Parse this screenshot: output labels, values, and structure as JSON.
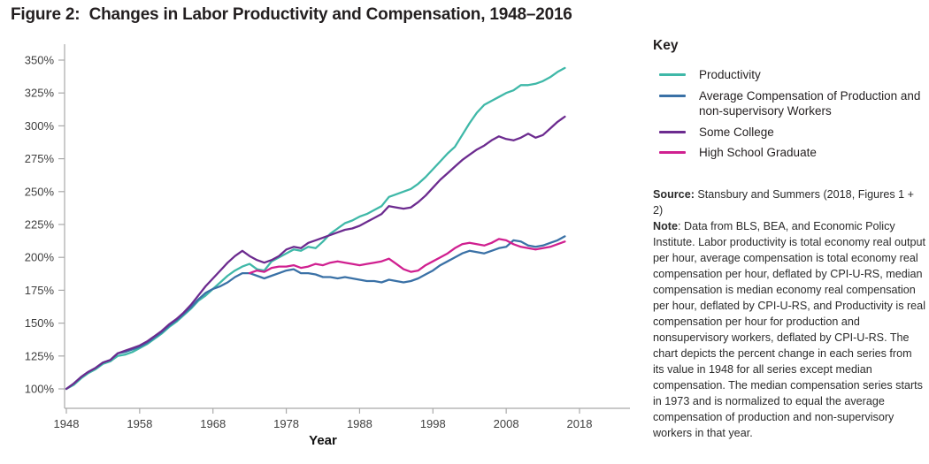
{
  "title": "Figure 2:  Changes in Labor Productivity and Compensation, 1948–2016",
  "legend": {
    "heading": "Key",
    "items": [
      {
        "label": "Productivity",
        "color": "#3fb8a8"
      },
      {
        "label": "Average Compensation of Production and non-supervisory Workers",
        "color": "#3a71a6"
      },
      {
        "label": "Some College",
        "color": "#6c2b8f"
      },
      {
        "label": "High School Graduate",
        "color": "#d02090"
      }
    ]
  },
  "notes": {
    "source_label": "Source:",
    "source_text": " Stansbury and Summers (2018, Figures 1 + 2)",
    "note_label": "Note",
    "note_text": ": Data from BLS, BEA, and Economic Policy Institute. Labor productivity is total economy real output per hour, average compensation is total economy real compensation per hour, deflated by CPI-U-RS, median compensation is median economy real compensation per hour, deflated by CPI-U-RS, and Productivity is real compensation per hour for production and nonsupervisory workers, deflated by CPI-U-RS. The chart depicts the percent change in each series from its value in 1948 for all series except median compensation. The median compensation series starts in 1973 and is normalized to equal the average compensation of production and non-supervisory workers in that year."
  },
  "chart_data": {
    "type": "line",
    "title": "Changes in Labor Productivity and Compensation, 1948–2016",
    "xlabel": "Year",
    "ylabel": "",
    "grid": false,
    "legend_position": "right",
    "xlim": [
      1948,
      2018
    ],
    "ylim": [
      100,
      350
    ],
    "x_ticks": [
      1948,
      1958,
      1968,
      1978,
      1988,
      1998,
      2008,
      2018
    ],
    "y_ticks": [
      {
        "v": 100,
        "label": "100%"
      },
      {
        "v": 125,
        "label": "125%"
      },
      {
        "v": 150,
        "label": "150%"
      },
      {
        "v": 175,
        "label": "175%"
      },
      {
        "v": 200,
        "label": "200%"
      },
      {
        "v": 225,
        "label": "225%"
      },
      {
        "v": 250,
        "label": "250%"
      },
      {
        "v": 275,
        "label": "275%"
      },
      {
        "v": 300,
        "label": "300%"
      },
      {
        "v": 325,
        "label": "325%"
      },
      {
        "v": 350,
        "label": "350%"
      }
    ],
    "series": [
      {
        "name": "Productivity",
        "color": "#3fb8a8",
        "x_start": 1948,
        "values": [
          100,
          103,
          108,
          112,
          115,
          119,
          121,
          125,
          126,
          128,
          131,
          134,
          138,
          142,
          147,
          151,
          156,
          161,
          167,
          171,
          176,
          181,
          186,
          190,
          193,
          195,
          191,
          190,
          197,
          200,
          203,
          206,
          205,
          208,
          207,
          212,
          218,
          222,
          226,
          228,
          231,
          233,
          236,
          239,
          246,
          248,
          250,
          252,
          256,
          261,
          267,
          273,
          279,
          284,
          293,
          302,
          310,
          316,
          319,
          322,
          325,
          327,
          331,
          331,
          332,
          334,
          337,
          341,
          344
        ]
      },
      {
        "name": "Average Compensation of Production and non-supervisory Workers",
        "color": "#3a71a6",
        "x_start": 1948,
        "values": [
          100,
          104,
          109,
          113,
          116,
          120,
          122,
          127,
          128,
          130,
          132,
          135,
          139,
          143,
          148,
          152,
          157,
          162,
          168,
          173,
          176,
          178,
          181,
          185,
          188,
          188,
          186,
          184,
          186,
          188,
          190,
          191,
          188,
          188,
          187,
          185,
          185,
          184,
          185,
          184,
          183,
          182,
          182,
          181,
          183,
          182,
          181,
          182,
          184,
          187,
          190,
          194,
          197,
          200,
          203,
          205,
          204,
          203,
          205,
          207,
          208,
          213,
          212,
          209,
          208,
          209,
          211,
          213,
          216
        ]
      },
      {
        "name": "High School Graduate",
        "color": "#d02090",
        "x_start": 1973,
        "values": [
          188,
          190,
          189,
          192,
          193,
          193,
          194,
          192,
          193,
          195,
          194,
          196,
          197,
          196,
          195,
          194,
          195,
          196,
          197,
          199,
          195,
          191,
          189,
          190,
          194,
          197,
          200,
          203,
          207,
          210,
          211,
          210,
          209,
          211,
          214,
          213,
          210,
          208,
          207,
          206,
          207,
          208,
          210,
          212
        ]
      },
      {
        "name": "Some College",
        "color": "#6c2b8f",
        "x_start": 1948,
        "values": [
          100,
          104,
          109,
          113,
          116,
          120,
          122,
          127,
          129,
          131,
          133,
          136,
          140,
          144,
          149,
          153,
          158,
          164,
          171,
          178,
          184,
          190,
          196,
          201,
          205,
          201,
          198,
          196,
          198,
          201,
          206,
          208,
          207,
          211,
          213,
          215,
          217,
          219,
          221,
          222,
          224,
          227,
          230,
          233,
          239,
          238,
          237,
          238,
          242,
          247,
          253,
          259,
          264,
          269,
          274,
          278,
          282,
          285,
          289,
          292,
          290,
          289,
          291,
          294,
          291,
          293,
          298,
          303,
          307
        ]
      }
    ]
  }
}
